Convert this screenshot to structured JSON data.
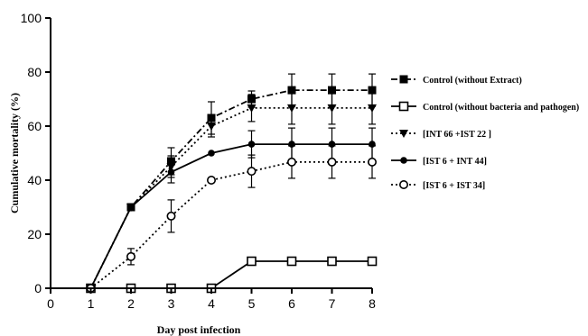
{
  "chart_data": {
    "type": "line",
    "xlabel": "Day post infection",
    "ylabel": "Cumulative mortality (%)",
    "xlim": [
      0,
      8
    ],
    "ylim": [
      0,
      100
    ],
    "x_ticks": [
      0,
      1,
      2,
      3,
      4,
      5,
      6,
      7,
      8
    ],
    "y_ticks": [
      0,
      20,
      40,
      60,
      80,
      100
    ],
    "grid": false,
    "legend_position": "right",
    "x": [
      1,
      2,
      3,
      4,
      5,
      6,
      7,
      8
    ],
    "series": [
      {
        "name": "Control (without  Extract)",
        "values": [
          0,
          30,
          47,
          63,
          70,
          73.3,
          73.3,
          73.3
        ],
        "errors": [
          0,
          0,
          5,
          6,
          3,
          6,
          6,
          6
        ],
        "marker": "filled-square",
        "line_style": "dash-dot",
        "color": "#000000"
      },
      {
        "name": "Control (without bacteria and pathogen)",
        "values": [
          0,
          0,
          0,
          0,
          10,
          10,
          10,
          10
        ],
        "errors": [
          0,
          0,
          0,
          0,
          0,
          0,
          0,
          0
        ],
        "marker": "open-square",
        "line_style": "solid",
        "color": "#000000"
      },
      {
        "name": "[INT 66 +IST 22 ]",
        "values": [
          0,
          30,
          45,
          60,
          66.7,
          66.7,
          66.7,
          66.7
        ],
        "errors": [
          0,
          0,
          4,
          4,
          5,
          6,
          6,
          6
        ],
        "marker": "filled-triangle-down",
        "line_style": "dotted",
        "color": "#000000"
      },
      {
        "name": "[IST 6 + INT 44]",
        "values": [
          0,
          30,
          43,
          50,
          53.3,
          53.3,
          53.3,
          53.3
        ],
        "errors": [
          0,
          0,
          4,
          0,
          5,
          6,
          6,
          6
        ],
        "marker": "filled-circle",
        "line_style": "solid",
        "color": "#000000"
      },
      {
        "name": "[IST 6 + IST 34]",
        "values": [
          0,
          11.7,
          26.7,
          40,
          43.3,
          46.7,
          46.7,
          46.7
        ],
        "errors": [
          0,
          3,
          6,
          0,
          6,
          6,
          6,
          6
        ],
        "marker": "open-circle",
        "line_style": "dotted",
        "color": "#000000"
      }
    ]
  }
}
